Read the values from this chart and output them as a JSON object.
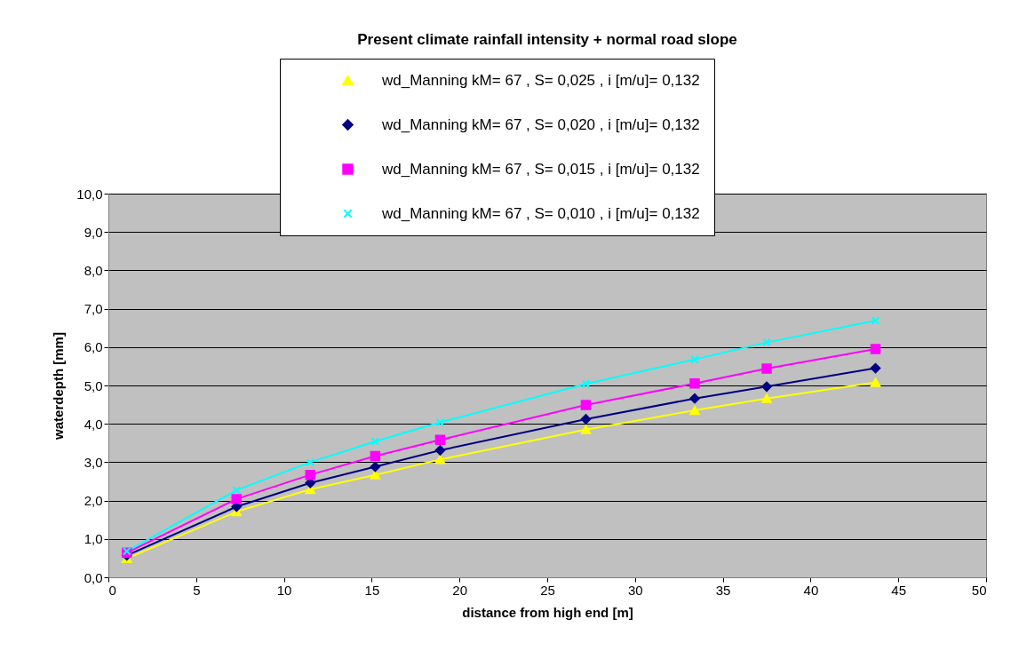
{
  "chart_data": {
    "type": "line",
    "title": "Present climate rainfall intensity + normal road slope",
    "xlabel": "distance from high end [m]",
    "ylabel": "waterdepth [mm]",
    "x": [
      1.05,
      7.3,
      11.5,
      15.2,
      18.9,
      27.2,
      33.4,
      37.5,
      43.7
    ],
    "series": [
      {
        "name": "wd_Manning kM= 67 , S= 0,025 , i [m/u]= 0,132",
        "color": "#ffff00",
        "marker": "triangle",
        "values": [
          0.49,
          1.71,
          2.29,
          2.67,
          3.07,
          3.85,
          4.35,
          4.66,
          5.08
        ]
      },
      {
        "name": "wd_Manning kM= 67 , S= 0,020 , i [m/u]= 0,132",
        "color": "#000080",
        "marker": "diamond",
        "values": [
          0.57,
          1.84,
          2.46,
          2.88,
          3.31,
          4.12,
          4.66,
          4.97,
          5.45
        ]
      },
      {
        "name": "wd_Manning kM= 67 , S= 0,015 , i [m/u]= 0,132",
        "color": "#ff00ff",
        "marker": "square",
        "values": [
          0.64,
          2.04,
          2.67,
          3.16,
          3.58,
          4.49,
          5.05,
          5.44,
          5.95
        ]
      },
      {
        "name": "wd_Manning kM= 67 , S= 0,010 , i [m/u]= 0,132",
        "color": "#00ffff",
        "marker": "cross",
        "values": [
          0.68,
          2.27,
          3.0,
          3.54,
          4.04,
          5.04,
          5.68,
          6.12,
          6.69
        ]
      }
    ],
    "xlim": [
      0,
      50
    ],
    "xticks": [
      0,
      5,
      10,
      15,
      20,
      25,
      30,
      35,
      40,
      45,
      50
    ],
    "ylim": [
      0,
      10
    ],
    "yticks": [
      {
        "value": 0,
        "label": "0,0"
      },
      {
        "value": 1,
        "label": "1,0"
      },
      {
        "value": 2,
        "label": "2,0"
      },
      {
        "value": 3,
        "label": "3,0"
      },
      {
        "value": 4,
        "label": "4,0"
      },
      {
        "value": 5,
        "label": "5,0"
      },
      {
        "value": 6,
        "label": "6,0"
      },
      {
        "value": 7,
        "label": "7,0"
      },
      {
        "value": 8,
        "label": "8,0"
      },
      {
        "value": 9,
        "label": "9,0"
      },
      {
        "value": 10,
        "label": "10,0"
      }
    ],
    "grid": "y",
    "legend": "top",
    "line_style": "solid"
  }
}
